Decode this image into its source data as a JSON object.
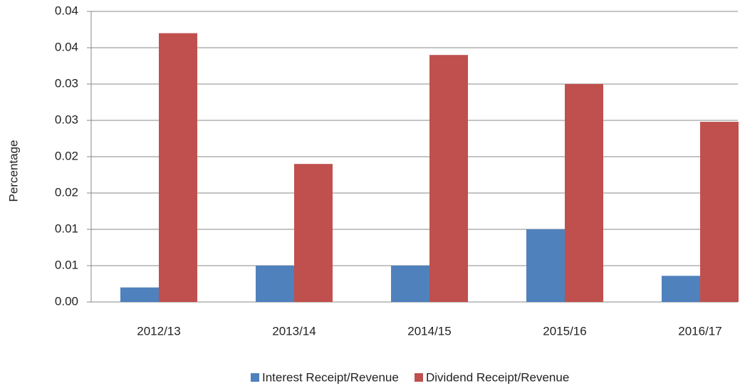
{
  "chart_data": {
    "type": "bar",
    "y_label": "Percentage",
    "categories": [
      "2012/13",
      "2013/14",
      "2014/15",
      "2015/16",
      "2016/17"
    ],
    "series": [
      {
        "name": "Interest Receipt/Revenue",
        "color": "#4f81bd",
        "values": [
          0.002,
          0.005,
          0.005,
          0.01,
          0.0036
        ]
      },
      {
        "name": "Dividend Receipt/Revenue",
        "color": "#c0504d",
        "values": [
          0.037,
          0.019,
          0.034,
          0.03,
          0.0248
        ]
      }
    ],
    "ylim": [
      0,
      0.04
    ],
    "yticks": [
      {
        "value": 0,
        "label": "0.00"
      },
      {
        "value": 0.005,
        "label": "0.01"
      },
      {
        "value": 0.01,
        "label": "0.01"
      },
      {
        "value": 0.015,
        "label": "0.02"
      },
      {
        "value": 0.02,
        "label": "0.02"
      },
      {
        "value": 0.025,
        "label": "0.03"
      },
      {
        "value": 0.03,
        "label": "0.03"
      },
      {
        "value": 0.035,
        "label": "0.04"
      },
      {
        "value": 0.04,
        "label": "0.04"
      }
    ],
    "grid": true,
    "legend": "bottom"
  }
}
